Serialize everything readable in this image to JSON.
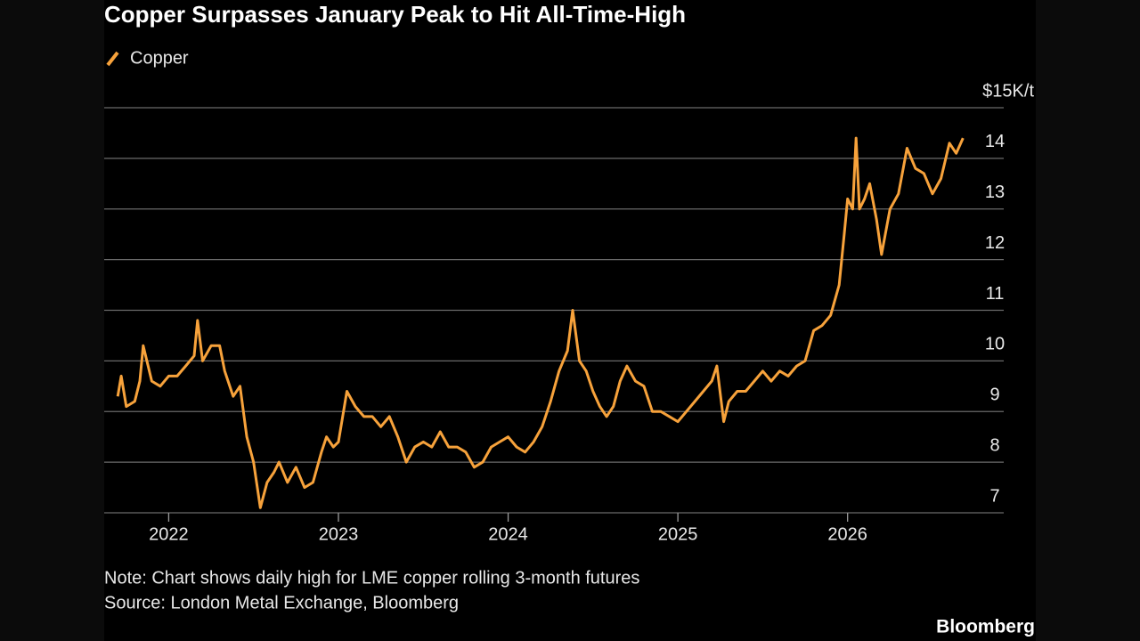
{
  "chart_data": {
    "type": "line",
    "title": "Copper Surpasses January Peak to Hit All-Time-High",
    "note": "Note: Chart shows daily high for LME copper rolling 3-month futures",
    "source": "Source: London Metal Exchange, Bloomberg",
    "logo": "Bloomberg",
    "legend": "top-left",
    "grid": true,
    "xlim": [
      2021.62,
      2026.92
    ],
    "ylim": [
      7,
      15
    ],
    "xticks": [
      2022,
      2023,
      2024,
      2025,
      2026
    ],
    "yticks": [
      7,
      8,
      9,
      10,
      11,
      12,
      13,
      14,
      {
        "value": 15,
        "label": "$15K/t"
      }
    ],
    "x": [
      2021.7,
      2021.72,
      2021.75,
      2021.8,
      2021.83,
      2021.85,
      2021.9,
      2021.95,
      2022.0,
      2022.05,
      2022.1,
      2022.15,
      2022.17,
      2022.2,
      2022.25,
      2022.3,
      2022.33,
      2022.38,
      2022.42,
      2022.46,
      2022.5,
      2022.54,
      2022.58,
      2022.62,
      2022.65,
      2022.7,
      2022.75,
      2022.8,
      2022.85,
      2022.9,
      2022.93,
      2022.97,
      2023.0,
      2023.03,
      2023.05,
      2023.1,
      2023.15,
      2023.2,
      2023.25,
      2023.3,
      2023.35,
      2023.4,
      2023.45,
      2023.5,
      2023.55,
      2023.6,
      2023.65,
      2023.7,
      2023.75,
      2023.8,
      2023.85,
      2023.9,
      2023.95,
      2024.0,
      2024.05,
      2024.1,
      2024.15,
      2024.2,
      2024.25,
      2024.3,
      2024.35,
      2024.38,
      2024.42,
      2024.46,
      2024.5,
      2024.54,
      2024.58,
      2024.62,
      2024.66,
      2024.7,
      2024.75,
      2024.8,
      2024.85,
      2024.9,
      2024.95,
      2025.0,
      2025.05,
      2025.1,
      2025.15,
      2025.2,
      2025.23,
      2025.27,
      2025.3,
      2025.35,
      2025.4,
      2025.45,
      2025.5,
      2025.55,
      2025.6,
      2025.65,
      2025.7,
      2025.75,
      2025.8,
      2025.85,
      2025.9,
      2025.95,
      2025.98,
      2026.0,
      2026.03,
      2026.05,
      2026.07,
      2026.1,
      2026.13,
      2026.17,
      2026.2,
      2026.25,
      2026.3,
      2026.35,
      2026.4,
      2026.45,
      2026.5,
      2026.55,
      2026.6,
      2026.64,
      2026.68
    ],
    "series": [
      {
        "name": "Copper",
        "color": "#f7a23b",
        "values": [
          9.3,
          9.7,
          9.1,
          9.2,
          9.6,
          10.3,
          9.6,
          9.5,
          9.7,
          9.7,
          9.9,
          10.1,
          10.8,
          10.0,
          10.3,
          10.3,
          9.8,
          9.3,
          9.5,
          8.5,
          8.0,
          7.1,
          7.6,
          7.8,
          8.0,
          7.6,
          7.9,
          7.5,
          7.6,
          8.2,
          8.5,
          8.3,
          8.4,
          9.0,
          9.4,
          9.1,
          8.9,
          8.9,
          8.7,
          8.9,
          8.5,
          8.0,
          8.3,
          8.4,
          8.3,
          8.6,
          8.3,
          8.3,
          8.2,
          7.9,
          8.0,
          8.3,
          8.4,
          8.5,
          8.3,
          8.2,
          8.4,
          8.7,
          9.2,
          9.8,
          10.2,
          11.0,
          10.0,
          9.8,
          9.4,
          9.1,
          8.9,
          9.1,
          9.6,
          9.9,
          9.6,
          9.5,
          9.0,
          9.0,
          8.9,
          8.8,
          9.0,
          9.2,
          9.4,
          9.6,
          9.9,
          8.8,
          9.2,
          9.4,
          9.4,
          9.6,
          9.8,
          9.6,
          9.8,
          9.7,
          9.9,
          10.0,
          10.6,
          10.7,
          10.9,
          11.5,
          12.5,
          13.2,
          13.0,
          14.4,
          13.0,
          13.2,
          13.5,
          12.8,
          12.1,
          13.0,
          13.3,
          14.2,
          13.8,
          13.7,
          13.3,
          13.6,
          14.3,
          14.1,
          14.4
        ]
      }
    ]
  }
}
